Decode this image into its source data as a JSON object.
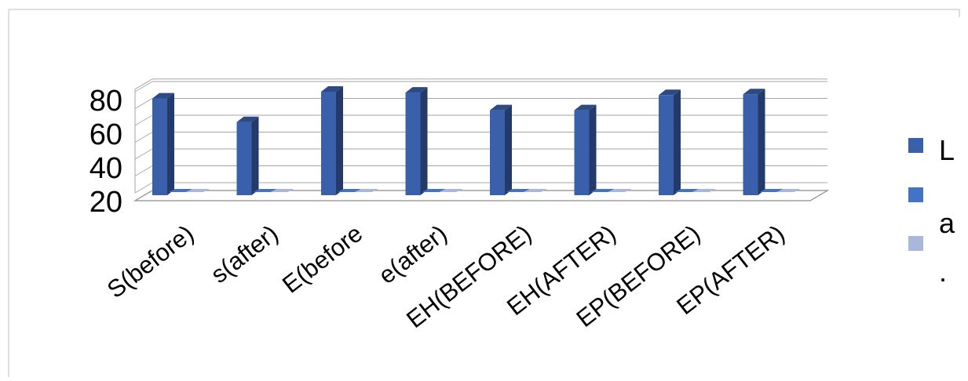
{
  "chart_data": {
    "type": "bar",
    "title": "",
    "xlabel": "",
    "ylabel": "",
    "categories": [
      "S(before)",
      "s(after)",
      "E(before",
      "e(after)",
      "EH(BEFORE)",
      "EH(AFTER)",
      "EP(BEFORE)",
      "EP(AFTER)"
    ],
    "series": [
      {
        "name": "L",
        "values": [
          76,
          62,
          80,
          79.5,
          69,
          69,
          78,
          78.5
        ],
        "color": "#3A5FAB"
      },
      {
        "name": "a",
        "values": [
          0.5,
          0.5,
          0.5,
          0.5,
          0.5,
          0.5,
          0.3,
          0.3
        ],
        "color": "#4472C4"
      },
      {
        "name": ".",
        "values": [
          0.3,
          0.3,
          0.3,
          0.3,
          0.3,
          0.3,
          0.2,
          0.2
        ],
        "color": "#A9B7DD"
      }
    ],
    "ylim": [
      20,
      80
    ],
    "yticks": [
      20,
      40,
      60,
      80
    ],
    "grid": true,
    "legend_position": "right",
    "projection": "3d"
  }
}
